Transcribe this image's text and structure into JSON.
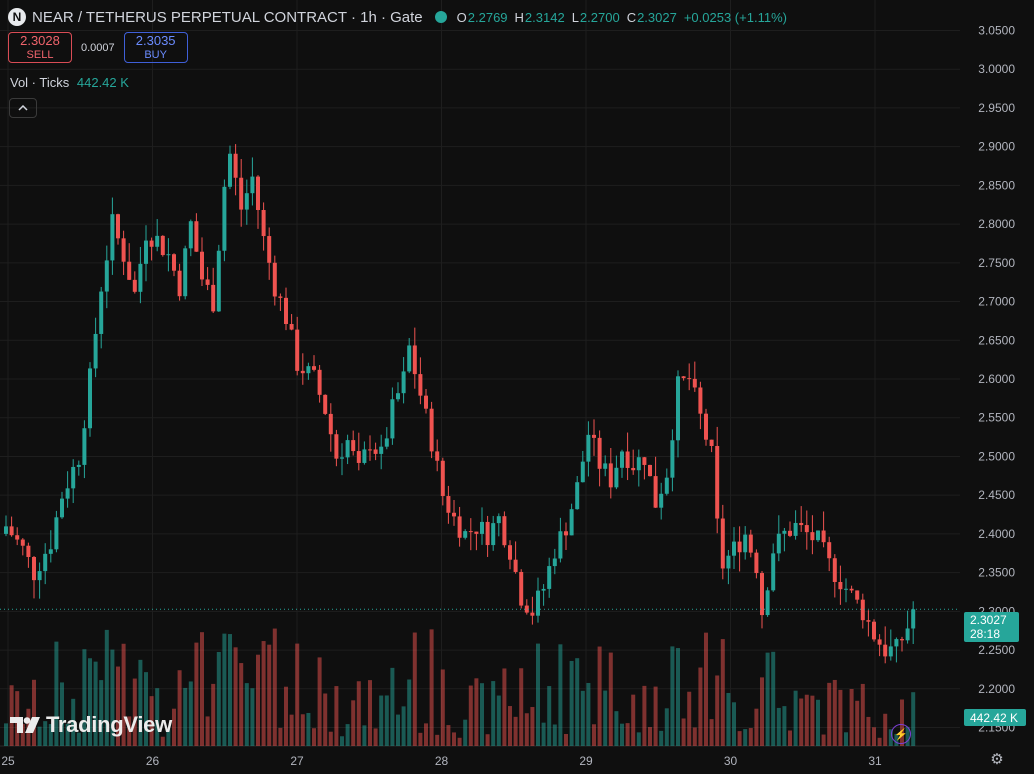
{
  "header": {
    "logo_letter": "N",
    "symbol": "NEAR / TETHERUS PERPETUAL CONTRACT · 1h · Gate",
    "open_key": "O",
    "open": "2.2769",
    "high_key": "H",
    "high": "2.3142",
    "low_key": "L",
    "low": "2.2700",
    "close_key": "C",
    "close": "2.3027",
    "change": "+0.0253 (+1.11%)"
  },
  "trade": {
    "sell_price": "2.3028",
    "sell_label": "SELL",
    "spread": "0.0007",
    "buy_price": "2.3035",
    "buy_label": "BUY"
  },
  "volume_legend": {
    "label": "Vol · Ticks",
    "value": "442.42 K"
  },
  "collapse_icon": "chevron-up",
  "branding": {
    "name": "TradingView"
  },
  "price_tag": {
    "price": "2.3027",
    "countdown": "28:18"
  },
  "volume_tag": "442.42 K",
  "colors": {
    "up": "#26a69a",
    "down": "#ef5350",
    "background": "#0f0f0f",
    "grid": "#1e1e1e"
  },
  "chart_data": {
    "type": "candlestick",
    "interval": "1h",
    "y_ticks": [
      "3.0500",
      "3.0000",
      "2.9500",
      "2.9000",
      "2.8500",
      "2.8000",
      "2.7500",
      "2.7000",
      "2.6500",
      "2.6000",
      "2.5500",
      "2.5000",
      "2.4500",
      "2.4000",
      "2.3500",
      "2.3000",
      "2.2500",
      "2.2000",
      "2.1500"
    ],
    "ylim": [
      2.13,
      3.07
    ],
    "x_ticks": [
      "25",
      "26",
      "27",
      "28",
      "29",
      "30",
      "31"
    ],
    "grid": true,
    "last_price": 2.3027,
    "close_path": [
      [
        0,
        2.41
      ],
      [
        3,
        2.38
      ],
      [
        5,
        2.35
      ],
      [
        8,
        2.39
      ],
      [
        10,
        2.45
      ],
      [
        13,
        2.5
      ],
      [
        15,
        2.6
      ],
      [
        17,
        2.72
      ],
      [
        19,
        2.8
      ],
      [
        21,
        2.76
      ],
      [
        23,
        2.71
      ],
      [
        25,
        2.79
      ],
      [
        27,
        2.78
      ],
      [
        29,
        2.76
      ],
      [
        31,
        2.72
      ],
      [
        33,
        2.8
      ],
      [
        35,
        2.73
      ],
      [
        37,
        2.7
      ],
      [
        39,
        2.85
      ],
      [
        40,
        2.89
      ],
      [
        42,
        2.82
      ],
      [
        44,
        2.86
      ],
      [
        46,
        2.78
      ],
      [
        48,
        2.72
      ],
      [
        50,
        2.68
      ],
      [
        52,
        2.62
      ],
      [
        55,
        2.6
      ],
      [
        57,
        2.56
      ],
      [
        59,
        2.5
      ],
      [
        61,
        2.52
      ],
      [
        63,
        2.48
      ],
      [
        65,
        2.52
      ],
      [
        67,
        2.5
      ],
      [
        69,
        2.56
      ],
      [
        71,
        2.6
      ],
      [
        72,
        2.64
      ],
      [
        74,
        2.58
      ],
      [
        76,
        2.52
      ],
      [
        78,
        2.45
      ],
      [
        80,
        2.42
      ],
      [
        82,
        2.4
      ],
      [
        84,
        2.41
      ],
      [
        86,
        2.4
      ],
      [
        88,
        2.42
      ],
      [
        90,
        2.38
      ],
      [
        92,
        2.32
      ],
      [
        94,
        2.3
      ],
      [
        96,
        2.33
      ],
      [
        98,
        2.38
      ],
      [
        100,
        2.41
      ],
      [
        102,
        2.46
      ],
      [
        104,
        2.53
      ],
      [
        106,
        2.49
      ],
      [
        108,
        2.47
      ],
      [
        110,
        2.51
      ],
      [
        112,
        2.49
      ],
      [
        114,
        2.5
      ],
      [
        116,
        2.44
      ],
      [
        118,
        2.48
      ],
      [
        120,
        2.59
      ],
      [
        122,
        2.6
      ],
      [
        124,
        2.55
      ],
      [
        126,
        2.5
      ],
      [
        127,
        2.41
      ],
      [
        128,
        2.36
      ],
      [
        130,
        2.38
      ],
      [
        132,
        2.4
      ],
      [
        134,
        2.36
      ],
      [
        135,
        2.3
      ],
      [
        137,
        2.38
      ],
      [
        139,
        2.4
      ],
      [
        141,
        2.41
      ],
      [
        143,
        2.4
      ],
      [
        145,
        2.39
      ],
      [
        147,
        2.36
      ],
      [
        149,
        2.34
      ],
      [
        151,
        2.32
      ],
      [
        153,
        2.3
      ],
      [
        155,
        2.27
      ],
      [
        157,
        2.25
      ],
      [
        159,
        2.25
      ],
      [
        161,
        2.28
      ],
      [
        162,
        2.3
      ]
    ],
    "volume_legend_value": "442.42 K"
  }
}
